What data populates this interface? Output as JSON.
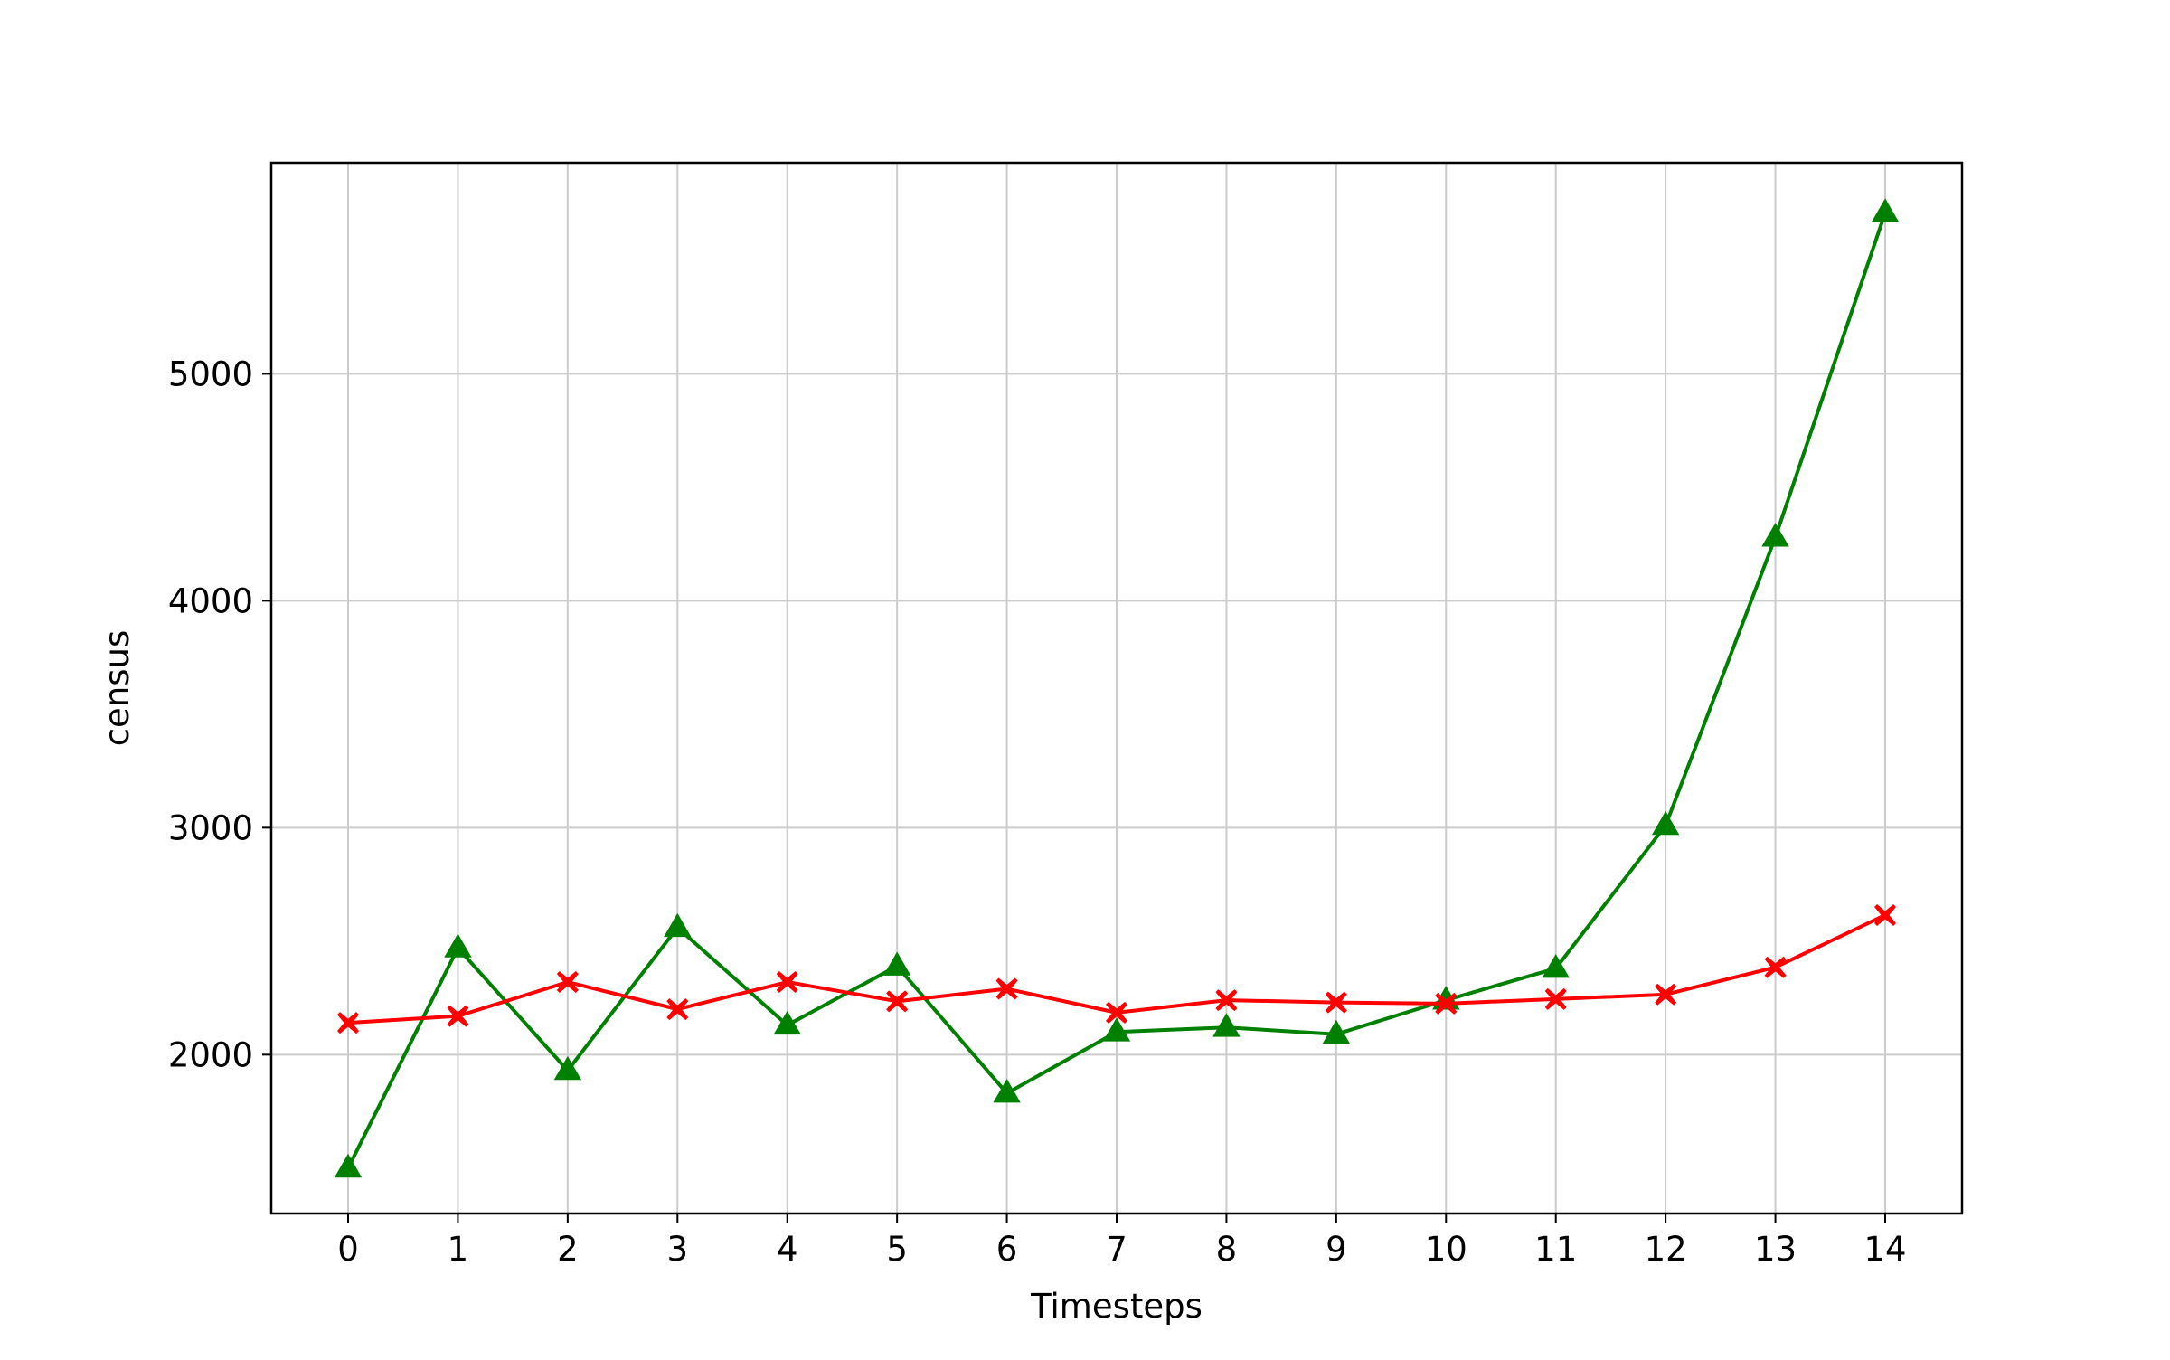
{
  "chart_data": {
    "type": "line",
    "title": "",
    "xlabel": "Timesteps",
    "ylabel": "census",
    "x": [
      0,
      1,
      2,
      3,
      4,
      5,
      6,
      7,
      8,
      9,
      10,
      11,
      12,
      13,
      14
    ],
    "x_ticks": [
      "0",
      "1",
      "2",
      "3",
      "4",
      "5",
      "6",
      "7",
      "8",
      "9",
      "10",
      "11",
      "12",
      "13",
      "14"
    ],
    "y_ticks": [
      "2000",
      "3000",
      "4000",
      "5000"
    ],
    "xlim": [
      -0.7,
      14.7
    ],
    "ylim": [
      1300,
      5930
    ],
    "grid": true,
    "legend": false,
    "series": [
      {
        "color": "#008000",
        "marker": "triangle",
        "values": [
          1500,
          2470,
          1930,
          2560,
          2130,
          2390,
          1830,
          2100,
          2120,
          2090,
          2240,
          2380,
          3010,
          4280,
          5710
        ]
      },
      {
        "color": "#ff0000",
        "marker": "x-filled",
        "values": [
          2140,
          2170,
          2320,
          2200,
          2320,
          2235,
          2290,
          2185,
          2240,
          2230,
          2225,
          2245,
          2265,
          2385,
          2615
        ]
      }
    ]
  }
}
